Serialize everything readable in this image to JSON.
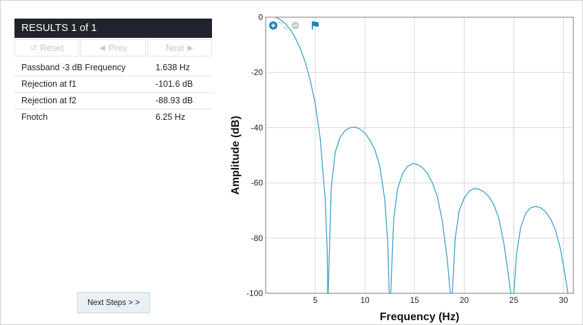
{
  "results": {
    "header": "RESULTS  1 of 1",
    "nav": {
      "reset_label": "Reset",
      "prev_label": "Prev",
      "next_label": "Next"
    },
    "rows": [
      {
        "label": "Passband -3 dB Frequency",
        "value": "1.638 Hz"
      },
      {
        "label": "Rejection at f1",
        "value": "-101.6 dB"
      },
      {
        "label": "Rejection at f2",
        "value": "-88.93 dB"
      },
      {
        "label": "Fnotch",
        "value": "6.25 Hz"
      }
    ]
  },
  "next_steps_label": "Next Steps > >",
  "chart_toolbar": [
    "zoom-in-icon",
    "fit-icon",
    "zoom-out-icon",
    "flag-icon"
  ],
  "chart_data": {
    "type": "line",
    "xlabel": "Frequency (Hz)",
    "ylabel": "Amplitude (dB)",
    "xlim": [
      0,
      31
    ],
    "ylim": [
      -100,
      0
    ],
    "xticks": [
      5,
      10,
      15,
      20,
      25,
      30
    ],
    "yticks": [
      0,
      -20,
      -40,
      -60,
      -80,
      -100
    ],
    "grid": true,
    "line_color": "#3a9fc8",
    "series": [
      {
        "x": [
          1.0,
          1.5,
          2.0,
          2.5,
          3.0,
          3.5,
          4.0,
          4.5,
          5.0,
          5.5,
          6.0,
          6.2,
          6.25,
          6.3,
          6.6,
          7.0,
          7.5,
          8.0,
          8.5,
          9.0,
          9.5,
          10.0,
          10.5,
          11.0,
          11.5,
          12.0,
          12.3,
          12.45,
          12.6,
          12.9,
          13.3,
          13.8,
          14.3,
          14.8,
          15.3,
          15.8,
          16.3,
          16.8,
          17.3,
          17.8,
          18.3,
          18.6,
          18.8,
          19.1,
          19.5,
          20.0,
          20.5,
          21.0,
          21.5,
          22.0,
          22.5,
          23.0,
          23.5,
          24.0,
          24.4,
          24.7,
          25.0,
          25.3,
          25.7,
          26.2,
          26.7,
          27.2,
          27.7,
          28.2,
          28.7,
          29.2,
          29.7,
          30.1,
          30.45
        ],
        "y": [
          0.0,
          -0.9,
          -2.4,
          -4.6,
          -7.6,
          -11.5,
          -16.5,
          -23.0,
          -31.5,
          -44.0,
          -66.0,
          -85.0,
          -100.0,
          -100.0,
          -62.0,
          -49.0,
          -43.5,
          -41.0,
          -40.0,
          -39.8,
          -40.5,
          -42.0,
          -44.5,
          -48.0,
          -54.0,
          -66.0,
          -82.0,
          -100.0,
          -100.0,
          -73.0,
          -62.0,
          -56.5,
          -54.0,
          -53.0,
          -53.3,
          -54.5,
          -56.5,
          -60.0,
          -65.0,
          -74.0,
          -88.0,
          -100.0,
          -100.0,
          -80.0,
          -70.0,
          -65.5,
          -63.0,
          -62.0,
          -62.3,
          -63.3,
          -65.0,
          -68.0,
          -73.0,
          -82.0,
          -92.0,
          -100.0,
          -100.0,
          -85.0,
          -76.0,
          -71.0,
          -69.0,
          -68.5,
          -69.0,
          -70.5,
          -73.0,
          -77.0,
          -84.0,
          -92.0,
          -100.0
        ]
      }
    ]
  }
}
